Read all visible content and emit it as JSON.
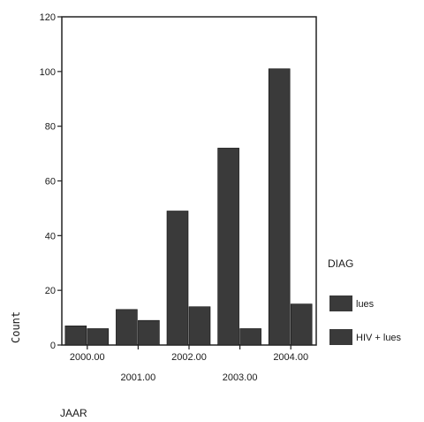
{
  "chart_data": {
    "type": "bar",
    "ylabel": "Count",
    "xlabel": "JAAR",
    "categories": [
      "2000.00",
      "2001.00",
      "2002.00",
      "2003.00",
      "2004.00"
    ],
    "series": [
      {
        "name": "lues",
        "values": [
          7,
          13,
          49,
          72,
          101
        ],
        "color": "#3a3a3a"
      },
      {
        "name": "HIV + lues",
        "values": [
          6,
          9,
          14,
          6,
          15
        ],
        "color": "#3a3a3a"
      }
    ],
    "ylim": [
      0,
      120
    ],
    "yticks": [
      0,
      20,
      40,
      60,
      80,
      100,
      120
    ],
    "legend": {
      "title": "DIAG",
      "placement": "right"
    },
    "grid": false
  }
}
